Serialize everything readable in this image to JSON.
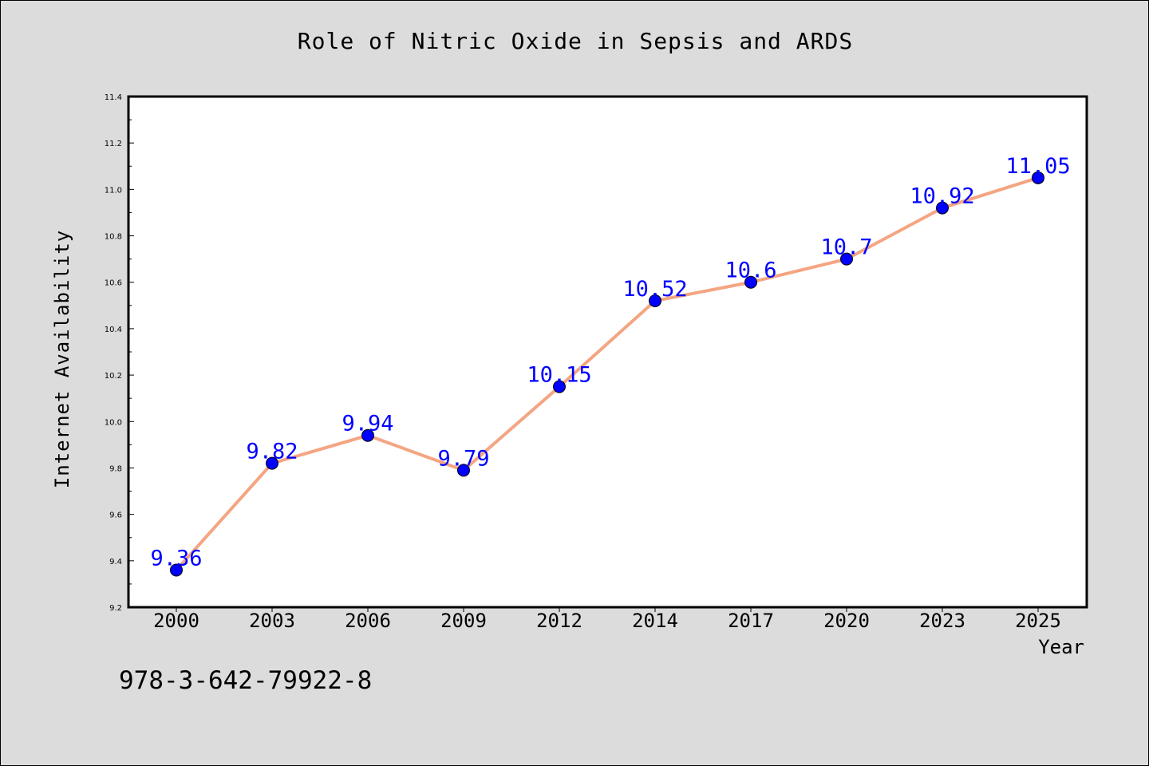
{
  "chart_data": {
    "type": "line",
    "title": "Role of Nitric Oxide in Sepsis and ARDS",
    "xlabel": "Year",
    "ylabel": "Internet Availability",
    "categories": [
      "2000",
      "2003",
      "2006",
      "2009",
      "2012",
      "2014",
      "2017",
      "2020",
      "2023",
      "2025"
    ],
    "values": [
      9.36,
      9.82,
      9.94,
      9.79,
      10.15,
      10.52,
      10.6,
      10.7,
      10.92,
      11.05
    ],
    "data_labels": [
      "9.36",
      "9.82",
      "9.94",
      "9.79",
      "10.15",
      "10.52",
      "10.6",
      "10.7",
      "10.92",
      "11.05"
    ],
    "ylim": [
      9.2,
      11.4
    ],
    "yticks": [
      "9.2",
      "9.4",
      "9.6",
      "9.8",
      "10.0",
      "10.2",
      "10.4",
      "10.6",
      "10.8",
      "11.0",
      "11.2",
      "11.4"
    ],
    "grid": false,
    "colors": {
      "line": "#f4a582",
      "marker": "#0000ff",
      "data_label": "#0000ff",
      "plot_background": "#ffffff",
      "page_background": "#dcdcdc"
    }
  },
  "footer": {
    "isbn": "978-3-642-79922-8"
  }
}
